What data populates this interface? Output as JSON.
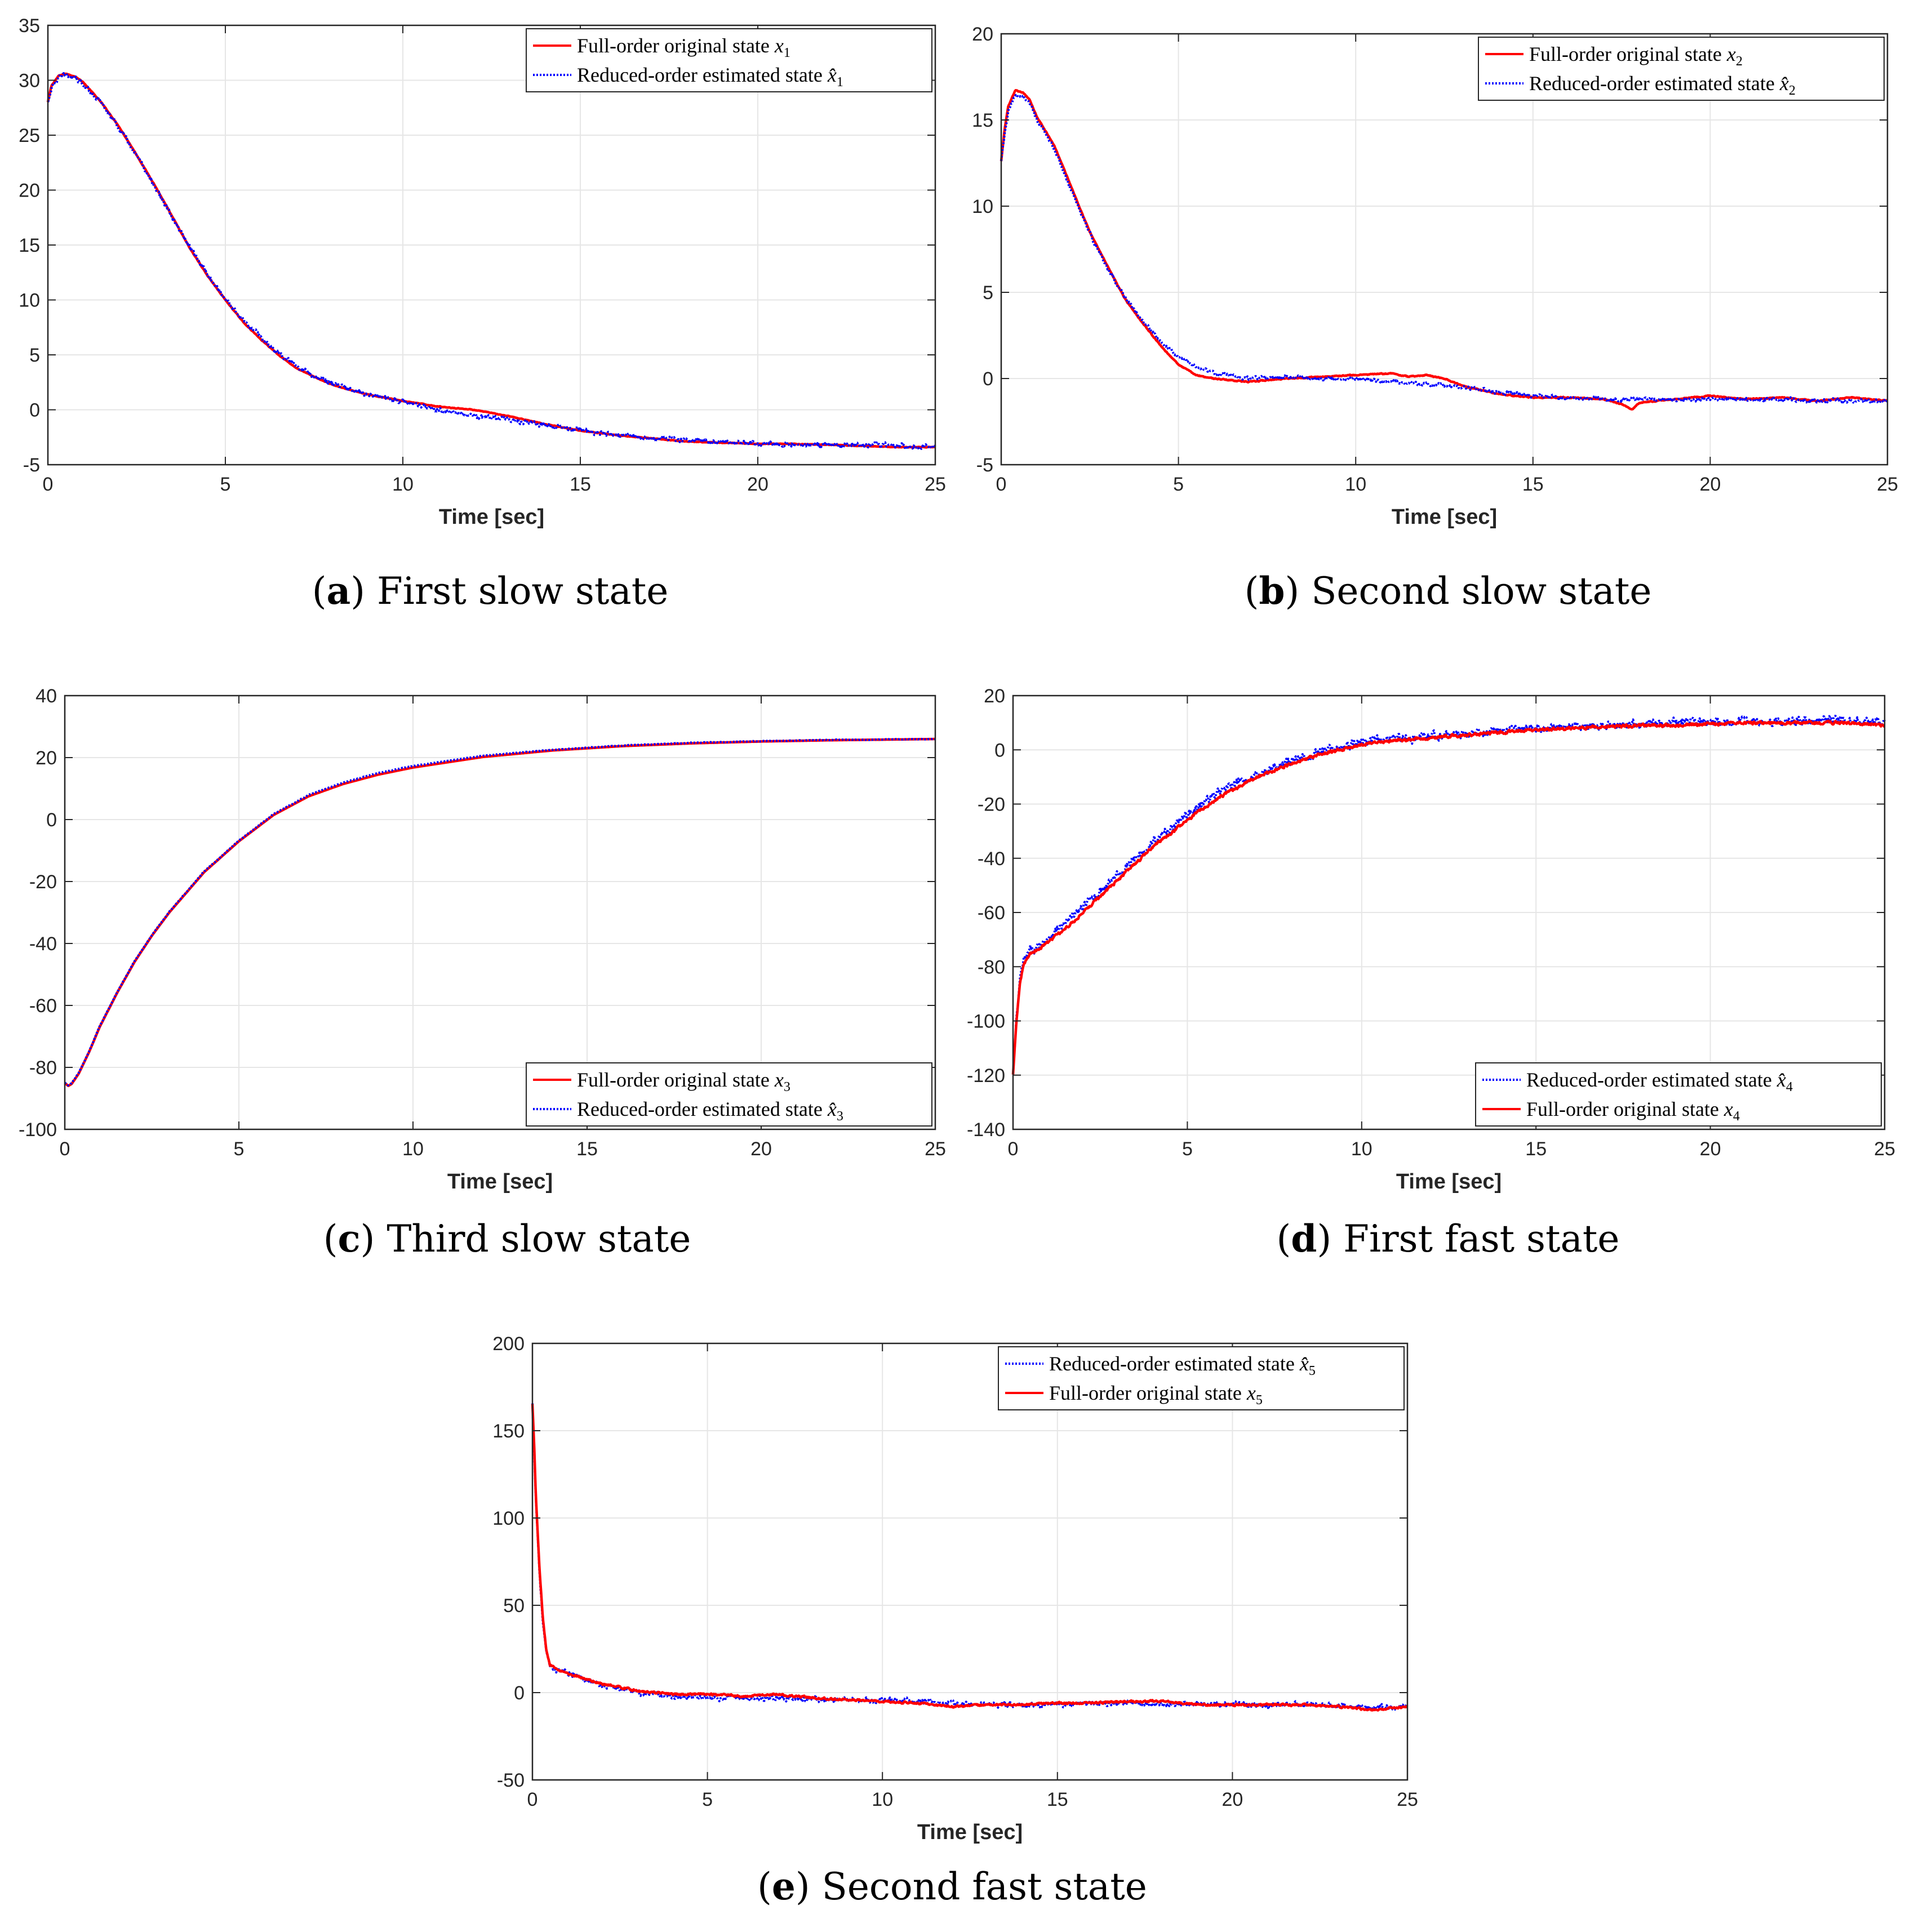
{
  "colors": {
    "full": "#ff0000",
    "reduced": "#0000ff",
    "grid": "#e6e6e6",
    "axis": "#262626"
  },
  "chart_data": [
    {
      "id": "a",
      "type": "line",
      "caption_letter": "a",
      "caption_text": "First slow state",
      "xlabel": "Time [sec]",
      "ylabel": "",
      "xlim": [
        0,
        25
      ],
      "ylim": [
        -5,
        35
      ],
      "xticks": [
        0,
        5,
        10,
        15,
        20,
        25
      ],
      "yticks": [
        -5,
        0,
        5,
        10,
        15,
        20,
        25,
        30,
        35
      ],
      "grid": true,
      "legend_position": "top-right",
      "series": [
        {
          "name": "Full-order original state",
          "sym": "x",
          "sub": "1",
          "style": "solid",
          "color": "#ff0000",
          "noise": 0.05,
          "x": [
            0,
            0.1,
            0.3,
            0.5,
            0.8,
            1,
            1.5,
            2,
            2.5,
            3,
            3.5,
            4,
            4.5,
            5,
            5.5,
            6,
            6.5,
            7,
            7.5,
            8,
            8.5,
            9,
            9.5,
            10,
            11,
            12,
            13,
            14,
            15,
            16,
            17,
            18,
            19,
            20,
            21,
            22,
            23,
            24,
            25
          ],
          "y": [
            28,
            29.5,
            30.4,
            30.6,
            30.3,
            29.8,
            28,
            25.8,
            23.2,
            20.5,
            17.6,
            14.7,
            12.2,
            10,
            8,
            6.4,
            5,
            3.8,
            3,
            2.3,
            1.8,
            1.4,
            1.1,
            0.8,
            0.3,
            0,
            -0.6,
            -1.3,
            -1.9,
            -2.3,
            -2.6,
            -2.9,
            -3,
            -3.1,
            -3.1,
            -3.2,
            -3.3,
            -3.4,
            -3.4
          ]
        },
        {
          "name": "Reduced-order estimated state",
          "sym": "x̂",
          "sub": "1",
          "style": "dotted",
          "color": "#0000ff",
          "noise": 0.35,
          "x": [
            0,
            0.1,
            0.3,
            0.5,
            0.8,
            1,
            1.5,
            2,
            2.5,
            3,
            3.5,
            4,
            4.5,
            5,
            5.5,
            6,
            6.5,
            7,
            7.5,
            8,
            8.5,
            9,
            9.5,
            10,
            11,
            12,
            13,
            14,
            15,
            16,
            17,
            18,
            19,
            20,
            21,
            22,
            23,
            24,
            25
          ],
          "y": [
            28,
            29.3,
            30.2,
            30.5,
            30.2,
            29.7,
            27.9,
            25.7,
            23.1,
            20.4,
            17.5,
            14.8,
            12.3,
            10.1,
            8.2,
            6.6,
            5.2,
            4,
            3.1,
            2.4,
            1.9,
            1.4,
            1.1,
            0.7,
            0,
            -0.6,
            -0.9,
            -1.4,
            -1.9,
            -2.3,
            -2.5,
            -2.8,
            -2.9,
            -3.1,
            -3.1,
            -3.2,
            -3.2,
            -3.3,
            -3.3
          ]
        }
      ]
    },
    {
      "id": "b",
      "type": "line",
      "caption_letter": "b",
      "caption_text": "Second slow state",
      "xlabel": "Time [sec]",
      "ylabel": "",
      "xlim": [
        0,
        25
      ],
      "ylim": [
        -5,
        20
      ],
      "xticks": [
        0,
        5,
        10,
        15,
        20,
        25
      ],
      "yticks": [
        -5,
        0,
        5,
        10,
        15,
        20
      ],
      "grid": true,
      "legend_position": "top-right",
      "series": [
        {
          "name": "Full-order original state",
          "sym": "x",
          "sub": "2",
          "style": "solid",
          "color": "#ff0000",
          "noise": 0.05,
          "x": [
            0,
            0.1,
            0.2,
            0.4,
            0.6,
            0.8,
            1,
            1.5,
            2,
            2.5,
            3,
            3.5,
            4,
            4.5,
            5,
            5.5,
            6,
            7,
            8,
            9,
            10,
            11,
            11.5,
            12,
            12.5,
            13,
            14,
            15,
            16,
            17,
            17.5,
            17.8,
            18,
            19,
            20,
            21,
            22,
            23,
            24,
            25
          ],
          "y": [
            12.6,
            14.5,
            15.8,
            16.7,
            16.6,
            16.2,
            15.2,
            13.5,
            11,
            8.5,
            6.5,
            4.6,
            3.2,
            1.9,
            0.8,
            0.2,
            0,
            -0.2,
            0,
            0.1,
            0.2,
            0.3,
            0.1,
            0.2,
            0,
            -0.4,
            -0.9,
            -1.1,
            -1.1,
            -1.2,
            -1.5,
            -1.8,
            -1.4,
            -1.2,
            -1,
            -1.2,
            -1.1,
            -1.3,
            -1.1,
            -1.3
          ]
        },
        {
          "name": "Reduced-order estimated state",
          "sym": "x̂",
          "sub": "2",
          "style": "dotted",
          "color": "#0000ff",
          "noise": 0.18,
          "x": [
            0,
            0.1,
            0.2,
            0.4,
            0.6,
            0.8,
            1,
            1.5,
            2,
            2.5,
            3,
            3.5,
            4,
            4.5,
            5,
            5.5,
            6,
            7,
            8,
            9,
            10,
            11,
            12,
            13,
            14,
            15,
            16,
            17,
            18,
            19,
            20,
            21,
            22,
            23,
            24,
            25
          ],
          "y": [
            12.6,
            14.2,
            15.5,
            16.4,
            16.4,
            16,
            15,
            13.3,
            10.8,
            8.4,
            6.4,
            4.7,
            3.3,
            2.2,
            1.3,
            0.7,
            0.3,
            0,
            0.1,
            0,
            0,
            -0.2,
            -0.3,
            -0.5,
            -0.8,
            -1,
            -1.1,
            -1.2,
            -1.2,
            -1.2,
            -1.2,
            -1.2,
            -1.2,
            -1.3,
            -1.3,
            -1.3
          ]
        }
      ]
    },
    {
      "id": "c",
      "type": "line",
      "caption_letter": "c",
      "caption_text": "Third slow state",
      "xlabel": "Time [sec]",
      "ylabel": "",
      "xlim": [
        0,
        25
      ],
      "ylim": [
        -100,
        40
      ],
      "xticks": [
        0,
        5,
        10,
        15,
        20,
        25
      ],
      "yticks": [
        -100,
        -80,
        -60,
        -40,
        -20,
        0,
        20,
        40
      ],
      "grid": true,
      "legend_position": "bottom-right",
      "series": [
        {
          "name": "Full-order original state",
          "sym": "x",
          "sub": "3",
          "style": "solid",
          "color": "#ff0000",
          "noise": 0,
          "x": [
            0,
            0.1,
            0.2,
            0.4,
            0.7,
            1,
            1.5,
            2,
            2.5,
            3,
            4,
            5,
            6,
            7,
            8,
            9,
            10,
            12,
            14,
            16,
            18,
            20,
            22,
            25
          ],
          "y": [
            -85,
            -86,
            -85.3,
            -82,
            -75,
            -67,
            -56,
            -46,
            -37.5,
            -30,
            -17,
            -7,
            1.5,
            7.5,
            11.5,
            14.5,
            16.8,
            20.2,
            22.3,
            23.7,
            24.6,
            25.2,
            25.6,
            26
          ]
        },
        {
          "name": "Reduced-order estimated state",
          "sym": "x̂",
          "sub": "3",
          "style": "dotted",
          "color": "#0000ff",
          "noise": 0.15,
          "x": [
            0,
            0.1,
            0.2,
            0.4,
            0.7,
            1,
            1.5,
            2,
            2.5,
            3,
            4,
            5,
            6,
            7,
            8,
            9,
            10,
            12,
            14,
            16,
            18,
            20,
            22,
            25
          ],
          "y": [
            -85,
            -85.8,
            -85.1,
            -81.8,
            -74.8,
            -66.8,
            -55.8,
            -45.8,
            -37.3,
            -29.8,
            -16.8,
            -6.8,
            1.8,
            7.9,
            12,
            15,
            17.3,
            20.6,
            22.5,
            23.9,
            24.8,
            25.3,
            25.7,
            26
          ]
        }
      ]
    },
    {
      "id": "d",
      "type": "line",
      "caption_letter": "d",
      "caption_text": "First fast state",
      "xlabel": "Time [sec]",
      "ylabel": "",
      "xlim": [
        0,
        25
      ],
      "ylim": [
        -140,
        20
      ],
      "xticks": [
        0,
        5,
        10,
        15,
        20,
        25
      ],
      "yticks": [
        -140,
        -120,
        -100,
        -80,
        -60,
        -40,
        -20,
        0,
        20
      ],
      "grid": true,
      "legend_position": "bottom-right",
      "series": [
        {
          "name": "Reduced-order estimated state",
          "sym": "x̂",
          "sub": "4",
          "style": "dotted",
          "color": "#0000ff",
          "noise": 2.6,
          "x": [
            0,
            0.1,
            0.2,
            0.3,
            0.5,
            0.8,
            1,
            1.5,
            2,
            2.5,
            3,
            3.5,
            4,
            4.5,
            5,
            5.5,
            6,
            7,
            8,
            9,
            10,
            11,
            12,
            13,
            14,
            15,
            16,
            17,
            18,
            19,
            20,
            21,
            22,
            23,
            24,
            25
          ],
          "y": [
            -120,
            -100,
            -85,
            -78,
            -74,
            -72,
            -69,
            -64,
            -58,
            -52,
            -46,
            -40,
            -34,
            -29,
            -24,
            -19,
            -15,
            -9,
            -4,
            0,
            3,
            4,
            5,
            6,
            7,
            8,
            8.5,
            9,
            9.5,
            10,
            10,
            10.5,
            10.5,
            11,
            11,
            10
          ]
        },
        {
          "name": "Full-order original state",
          "sym": "x",
          "sub": "4",
          "style": "solid",
          "color": "#ff0000",
          "noise": 1.0,
          "x": [
            0,
            0.1,
            0.2,
            0.3,
            0.5,
            0.8,
            1,
            1.5,
            2,
            2.5,
            3,
            3.5,
            4,
            4.5,
            5,
            5.5,
            6,
            7,
            8,
            9,
            10,
            11,
            12,
            13,
            14,
            15,
            16,
            17,
            18,
            19,
            20,
            21,
            22,
            23,
            24,
            25
          ],
          "y": [
            -120,
            -100,
            -86,
            -79,
            -75,
            -73,
            -71,
            -66,
            -60,
            -54,
            -48,
            -42,
            -36,
            -31,
            -26,
            -21,
            -17,
            -10,
            -5,
            -1,
            2,
            3.5,
            4.5,
            5.5,
            6.5,
            7.5,
            8,
            8.5,
            9,
            9,
            9.5,
            10,
            10,
            10,
            10,
            9
          ]
        }
      ]
    },
    {
      "id": "e",
      "type": "line",
      "caption_letter": "e",
      "caption_text": "Second fast state",
      "xlabel": "Time [sec]",
      "ylabel": "",
      "xlim": [
        0,
        25
      ],
      "ylim": [
        -50,
        200
      ],
      "xticks": [
        0,
        5,
        10,
        15,
        20,
        25
      ],
      "yticks": [
        -50,
        0,
        50,
        100,
        150,
        200
      ],
      "grid": true,
      "legend_position": "top-right",
      "series": [
        {
          "name": "Reduced-order estimated state",
          "sym": "x̂",
          "sub": "5",
          "style": "dotted",
          "color": "#0000ff",
          "noise": 2.6,
          "x": [
            0,
            0.05,
            0.1,
            0.2,
            0.3,
            0.4,
            0.5,
            0.7,
            1,
            1.5,
            2,
            3,
            4,
            5,
            6,
            7,
            8,
            9,
            10,
            11,
            12,
            13,
            14,
            15,
            16,
            17,
            18,
            19,
            20,
            21,
            22,
            23,
            24,
            25
          ],
          "y": [
            165,
            140,
            110,
            70,
            40,
            22,
            15,
            13,
            12,
            8,
            4,
            0,
            -2,
            -3,
            -3,
            -3,
            -4,
            -4,
            -4,
            -5,
            -6,
            -7,
            -7,
            -7,
            -6,
            -6,
            -6,
            -7,
            -7,
            -7,
            -7,
            -7,
            -8,
            -8
          ]
        },
        {
          "name": "Full-order original state",
          "sym": "x",
          "sub": "5",
          "style": "solid",
          "color": "#ff0000",
          "noise": 1.0,
          "x": [
            0,
            0.05,
            0.1,
            0.2,
            0.3,
            0.4,
            0.5,
            0.7,
            1,
            1.5,
            2,
            3,
            4,
            5,
            6,
            7,
            8,
            9,
            10,
            11,
            12,
            13,
            14,
            15,
            16,
            17,
            18,
            19,
            20,
            21,
            22,
            23,
            24,
            25
          ],
          "y": [
            165,
            142,
            112,
            72,
            42,
            24,
            16,
            13,
            11,
            8,
            5,
            1,
            -1,
            -1,
            -2,
            -1,
            -3,
            -4,
            -5,
            -6,
            -8,
            -7,
            -7,
            -6,
            -6,
            -5,
            -5,
            -7,
            -7,
            -7,
            -7,
            -8,
            -10,
            -8
          ]
        }
      ]
    }
  ]
}
